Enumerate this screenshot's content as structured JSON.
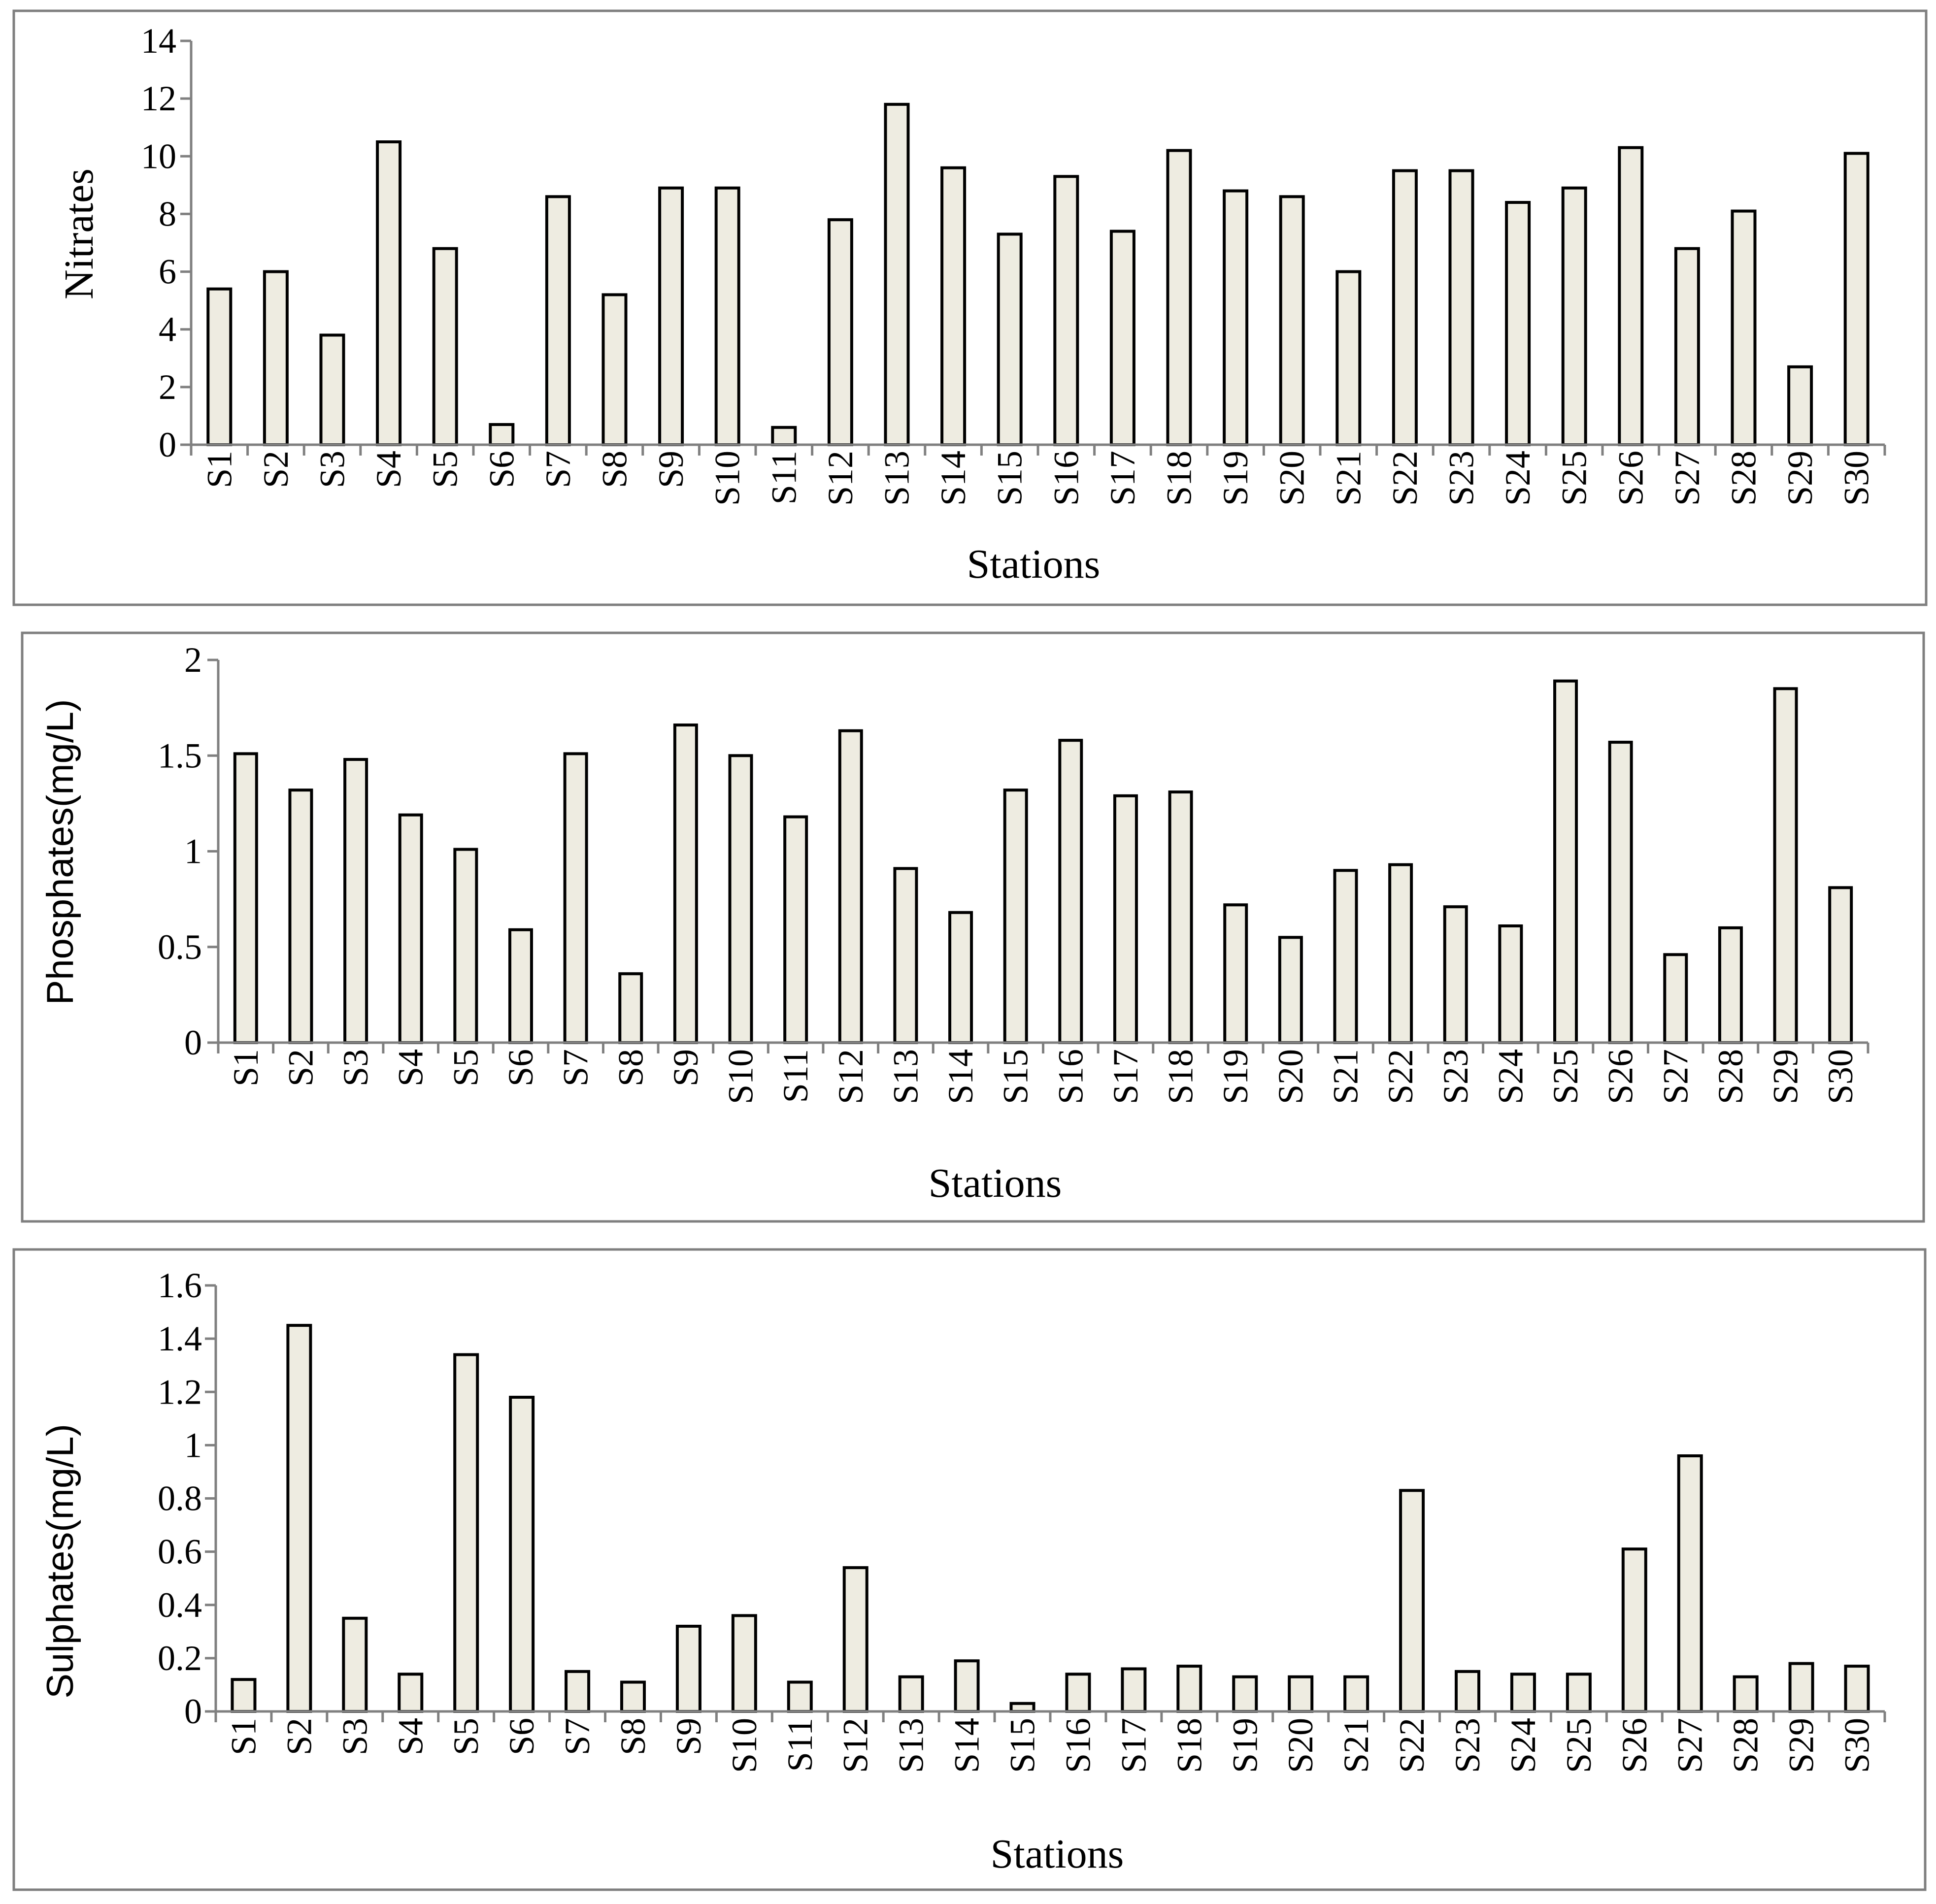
{
  "chart_data": [
    {
      "type": "bar",
      "title": "",
      "xlabel": "Stations",
      "ylabel": "Nitrates",
      "ylim": [
        0,
        14
      ],
      "yticks": [
        0,
        2,
        4,
        6,
        8,
        10,
        12,
        14
      ],
      "categories": [
        "S1",
        "S2",
        "S3",
        "S4",
        "S5",
        "S6",
        "S7",
        "S8",
        "S9",
        "S10",
        "S11",
        "S12",
        "S13",
        "S14",
        "S15",
        "S16",
        "S17",
        "S18",
        "S19",
        "S20",
        "S21",
        "S22",
        "S23",
        "S24",
        "S25",
        "S26",
        "S27",
        "S28",
        "S29",
        "S30"
      ],
      "values": [
        5.4,
        6.0,
        3.8,
        10.5,
        6.8,
        0.7,
        8.6,
        5.2,
        8.9,
        8.9,
        0.6,
        7.8,
        11.8,
        9.6,
        7.3,
        9.3,
        7.4,
        10.2,
        8.8,
        8.6,
        6.0,
        9.5,
        9.5,
        8.4,
        8.9,
        10.3,
        6.8,
        8.1,
        2.7,
        10.1
      ],
      "grid": false,
      "legend": "none"
    },
    {
      "type": "bar",
      "title": "",
      "xlabel": "Stations",
      "ylabel": "Phosphates(mg/L)",
      "ylim": [
        0,
        2
      ],
      "yticks": [
        0,
        0.5,
        1,
        1.5,
        2
      ],
      "ytick_labels": [
        "0",
        "0.5",
        "1",
        "1.5",
        "2"
      ],
      "categories": [
        "S1",
        "S2",
        "S3",
        "S4",
        "S5",
        "S6",
        "S7",
        "S8",
        "S9",
        "S10",
        "S11",
        "S12",
        "S13",
        "S14",
        "S15",
        "S16",
        "S17",
        "S18",
        "S19",
        "S20",
        "S21",
        "S22",
        "S23",
        "S24",
        "S25",
        "S26",
        "S27",
        "S28",
        "S29",
        "S30"
      ],
      "values": [
        1.51,
        1.32,
        1.48,
        1.19,
        1.01,
        0.59,
        1.51,
        0.36,
        1.66,
        1.5,
        1.18,
        1.63,
        0.91,
        0.68,
        1.32,
        1.58,
        1.29,
        1.31,
        0.72,
        0.55,
        0.9,
        0.93,
        0.71,
        0.61,
        1.89,
        1.57,
        0.46,
        0.6,
        1.85,
        0.81
      ],
      "grid": false,
      "legend": "none"
    },
    {
      "type": "bar",
      "title": "",
      "xlabel": "Stations",
      "ylabel": "Sulphates(mg/L)",
      "ylim": [
        0,
        1.6
      ],
      "yticks": [
        0,
        0.2,
        0.4,
        0.6,
        0.8,
        1,
        1.2,
        1.4,
        1.6
      ],
      "ytick_labels": [
        "0",
        "0.2",
        "0.4",
        "0.6",
        "0.8",
        "1",
        "1.2",
        "1.4",
        "1.6"
      ],
      "categories": [
        "S1",
        "S2",
        "S3",
        "S4",
        "S5",
        "S6",
        "S7",
        "S8",
        "S9",
        "S10",
        "S11",
        "S12",
        "S13",
        "S14",
        "S15",
        "S16",
        "S17",
        "S18",
        "S19",
        "S20",
        "S21",
        "S22",
        "S23",
        "S24",
        "S25",
        "S26",
        "S27",
        "S28",
        "S29",
        "S30"
      ],
      "values": [
        0.12,
        1.45,
        0.35,
        0.14,
        1.34,
        1.18,
        0.15,
        0.11,
        0.32,
        0.36,
        0.11,
        0.54,
        0.13,
        0.19,
        0.03,
        0.14,
        0.16,
        0.17,
        0.13,
        0.13,
        0.13,
        0.83,
        0.15,
        0.14,
        0.14,
        0.61,
        0.96,
        0.13,
        0.18,
        0.17
      ],
      "grid": false,
      "legend": "none"
    }
  ]
}
